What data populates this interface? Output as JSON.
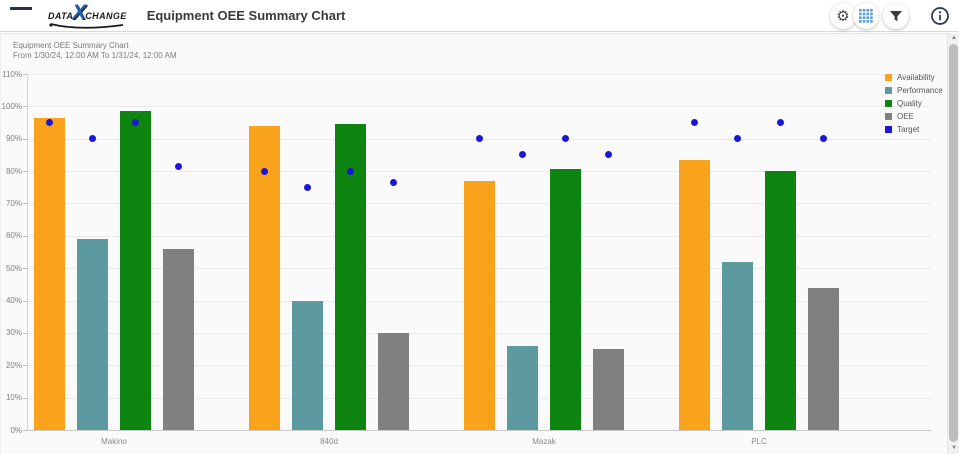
{
  "header": {
    "logo": {
      "part1": "DATA",
      "x": "X",
      "part2": "CHANGE"
    },
    "title": "Equipment OEE Summary Chart",
    "icons": [
      "settings-gear",
      "table-grid-view",
      "filter-funnel",
      "info"
    ]
  },
  "icons": {
    "gear": "⚙",
    "scroll_up": "▲",
    "scroll_down": "▼"
  },
  "chart": {
    "title": "Equipment OEE Summary Chart",
    "subtitle": "From 1/30/24, 12:00 AM To 1/31/24, 12:00 AM"
  },
  "chart_data": {
    "type": "bar",
    "title": "Equipment OEE Summary Chart",
    "subtitle": "From 1/30/24, 12:00 AM To 1/31/24, 12:00 AM",
    "categories": [
      "Makino",
      "840d",
      "Mazak",
      "PLC"
    ],
    "series": [
      {
        "name": "Availability",
        "color": "#F9A21B",
        "values": [
          96.5,
          94,
          77,
          83.5
        ]
      },
      {
        "name": "Performance",
        "color": "#5D9AA0",
        "values": [
          59,
          40,
          26,
          52
        ]
      },
      {
        "name": "Quality",
        "color": "#0E8411",
        "values": [
          98.5,
          94.5,
          80.5,
          80
        ]
      },
      {
        "name": "OEE",
        "color": "#808080",
        "values": [
          56,
          30,
          25,
          44
        ]
      }
    ],
    "target_series": {
      "name": "Target",
      "color": "#1B17D8",
      "values_per_category": [
        [
          95,
          90,
          95,
          81.5
        ],
        [
          80,
          75,
          80,
          76.5
        ],
        [
          90,
          85,
          90,
          85
        ],
        [
          95,
          90,
          95,
          90
        ]
      ]
    },
    "ylim": [
      0,
      110
    ],
    "ytick_step": 10,
    "ytick_suffix": "%",
    "grid": true,
    "legend_position": "top-right",
    "legend_entries": [
      "Availability",
      "Performance",
      "Quality",
      "OEE",
      "Target"
    ]
  }
}
